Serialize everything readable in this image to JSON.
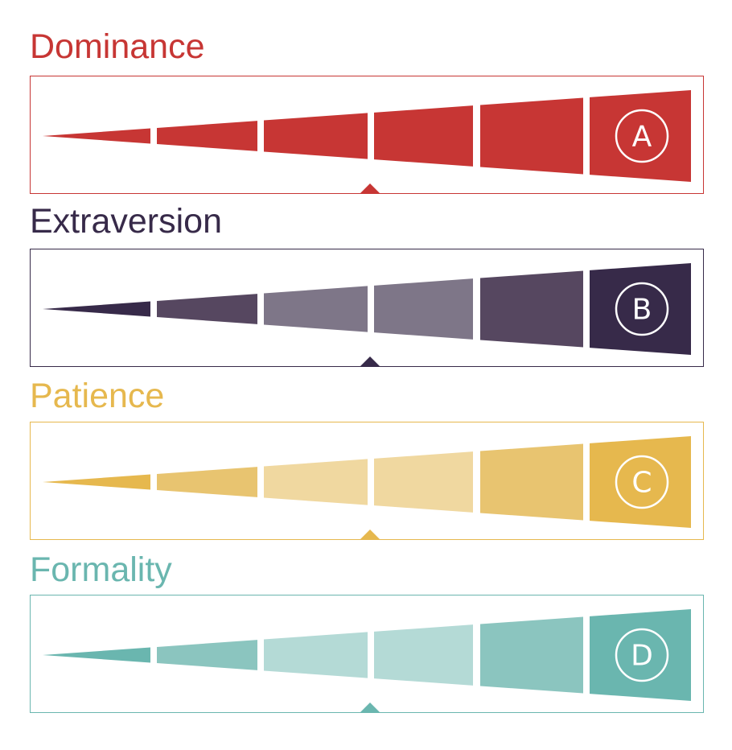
{
  "traits": [
    {
      "title": "Dominance",
      "letter": "A",
      "color": "#c73634",
      "shades": [
        "#c73634",
        "#c73634",
        "#c73634",
        "#c73634",
        "#c73634",
        "#c73634"
      ]
    },
    {
      "title": "Extraversion",
      "letter": "B",
      "color": "#372a49",
      "shades": [
        "#372a49",
        "#564760",
        "#7e7688",
        "#7e7688",
        "#564760",
        "#372a49"
      ]
    },
    {
      "title": "Patience",
      "letter": "C",
      "color": "#e6b84e",
      "shades": [
        "#e6b84e",
        "#e8c470",
        "#f0d8a0",
        "#f0d8a0",
        "#e8c470",
        "#e6b84e"
      ]
    },
    {
      "title": "Formality",
      "letter": "D",
      "color": "#6ab6af",
      "shades": [
        "#6ab6af",
        "#8bc5bf",
        "#b4dad6",
        "#b4dad6",
        "#8bc5bf",
        "#6ab6af"
      ]
    }
  ]
}
